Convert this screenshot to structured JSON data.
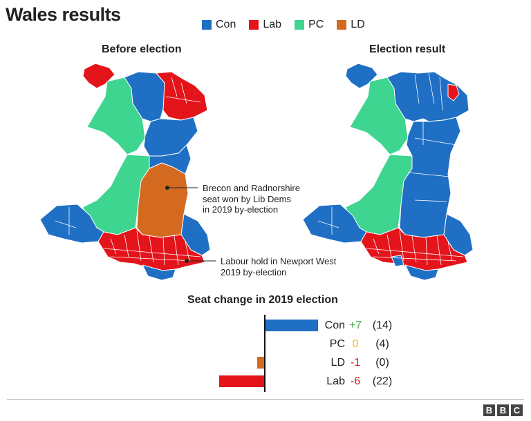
{
  "title": "Wales results",
  "legend": [
    {
      "label": "Con",
      "color": "#1f6fc5"
    },
    {
      "label": "Lab",
      "color": "#e4141b"
    },
    {
      "label": "PC",
      "color": "#3dd58f"
    },
    {
      "label": "LD",
      "color": "#d46a20"
    }
  ],
  "maps": {
    "before_title": "Before election",
    "after_title": "Election result",
    "annotation_brecon": [
      "Brecon and Radnorshire",
      "seat won by Lib Dems",
      "in 2019 by-election"
    ],
    "annotation_newport": [
      "Labour hold in Newport West",
      "2019 by-election"
    ]
  },
  "chart_data": {
    "type": "bar",
    "title": "Seat change in 2019 election",
    "categories": [
      "Con",
      "PC",
      "LD",
      "Lab"
    ],
    "values": [
      7,
      0,
      -1,
      -6
    ],
    "change_labels": [
      "+7",
      "0",
      "-1",
      "-6"
    ],
    "seat_labels": [
      "(14)",
      "(4)",
      "(0)",
      "(22)"
    ],
    "colors": [
      "#1f6fc5",
      "#3dd58f",
      "#d46a20",
      "#e4141b"
    ],
    "label_colors": [
      "#4caf50",
      "#f2c200",
      "#e4141b",
      "#e4141b"
    ]
  },
  "footer": {
    "logo": [
      "B",
      "B",
      "C"
    ]
  }
}
